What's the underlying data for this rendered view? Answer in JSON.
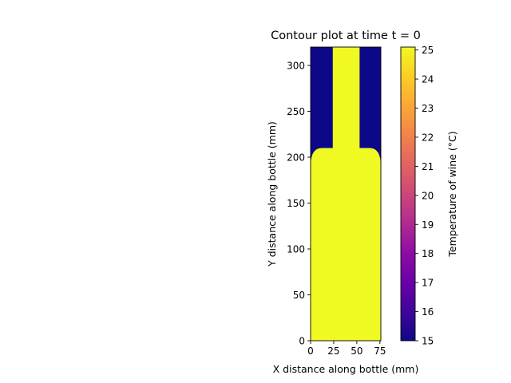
{
  "chart_data": {
    "type": "heatmap",
    "title": "Contour plot at time t = 0",
    "xlabel": "X distance along bottle (mm)",
    "ylabel": "Y distance along bottle (mm)",
    "xlim": [
      0,
      76
    ],
    "ylim": [
      0,
      320
    ],
    "x_ticks": [
      0,
      25,
      50,
      75
    ],
    "y_ticks": [
      0,
      50,
      100,
      150,
      200,
      250,
      300
    ],
    "grid": false,
    "colormap": "plasma",
    "colorbar": {
      "label": "Temperature of wine (°C)",
      "range": [
        15,
        25.1
      ],
      "ticks": [
        15,
        16,
        17,
        18,
        19,
        20,
        21,
        22,
        23,
        24,
        25
      ]
    },
    "ambient_temperature": 15,
    "wine_temperature": 25.1,
    "wine_region": {
      "body": {
        "x": [
          0,
          76
        ],
        "y": [
          0,
          190
        ]
      },
      "shoulder": {
        "y": [
          190,
          210
        ],
        "neck_x": [
          24,
          53
        ]
      },
      "neck": {
        "x": [
          24,
          53
        ],
        "y": [
          210,
          320
        ]
      }
    }
  }
}
